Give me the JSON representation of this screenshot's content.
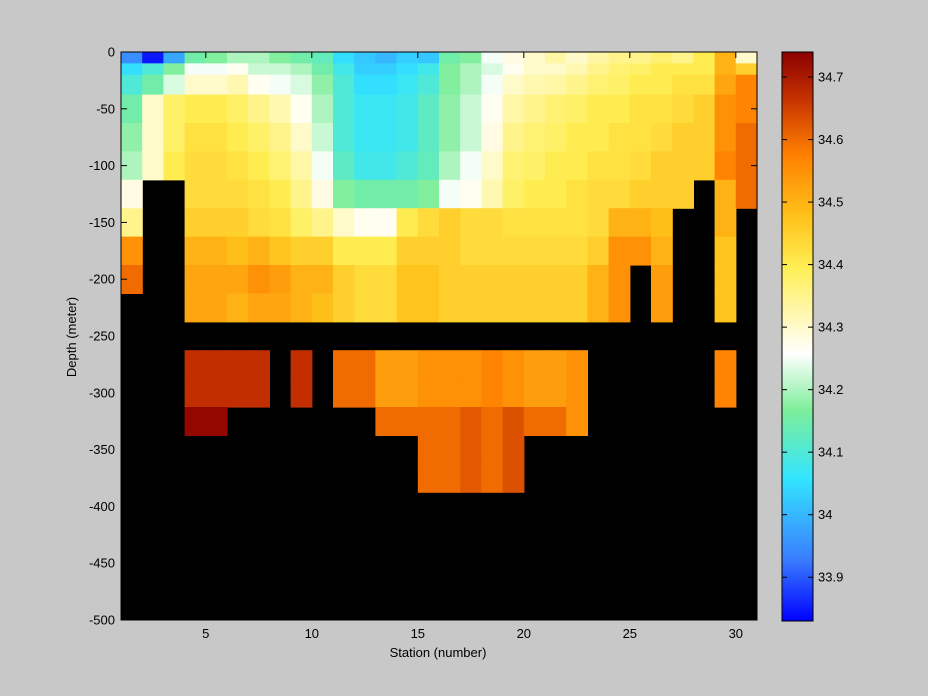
{
  "chart_data": {
    "type": "heatmap",
    "title": "",
    "xlabel": "Station (number)",
    "ylabel": "Depth (meter)",
    "xlim": [
      1,
      31
    ],
    "ylim": [
      -500,
      0
    ],
    "xticks": [
      5,
      10,
      15,
      20,
      25,
      30
    ],
    "yticks": [
      0,
      -50,
      -100,
      -150,
      -200,
      -250,
      -300,
      -350,
      -400,
      -450,
      -500
    ],
    "colorbar": {
      "label": "",
      "range": [
        33.83,
        34.74
      ],
      "ticks": [
        33.9,
        34,
        34.1,
        34.2,
        34.3,
        34.4,
        34.5,
        34.6,
        34.7
      ],
      "colormap": "jet-variant (blue-cyan-green-white-yellow-orange-darkred)"
    },
    "no_data_color": "#000000",
    "station_count": 30,
    "depth_levels": [
      -5,
      -15,
      -25,
      -50,
      -75,
      -100,
      -125,
      -150,
      -175,
      -200,
      -225,
      -250,
      -275,
      -300,
      -325,
      -350,
      -375,
      -400
    ],
    "values": [
      [
        33.95,
        33.85,
        33.98,
        34.15,
        34.17,
        34.2,
        34.2,
        34.17,
        34.15,
        34.13,
        34.05,
        34.02,
        34.0,
        34.03,
        34.02,
        34.15,
        34.17,
        34.25,
        34.28,
        34.3,
        34.33,
        34.3,
        34.33,
        34.35,
        34.35,
        34.37,
        34.35,
        34.4,
        34.5,
        34.3
      ],
      [
        34.05,
        34.1,
        34.17,
        34.25,
        34.25,
        34.27,
        34.22,
        34.22,
        34.2,
        34.15,
        34.08,
        34.03,
        34.03,
        34.05,
        34.08,
        34.17,
        34.2,
        34.23,
        34.27,
        34.3,
        34.3,
        34.32,
        34.35,
        34.37,
        34.38,
        34.4,
        34.4,
        34.4,
        34.5,
        34.45
      ],
      [
        34.1,
        34.15,
        34.23,
        34.3,
        34.3,
        34.32,
        34.27,
        34.25,
        34.23,
        34.18,
        34.1,
        34.05,
        34.05,
        34.07,
        34.1,
        34.17,
        34.2,
        34.25,
        34.3,
        34.32,
        34.33,
        34.35,
        34.37,
        34.38,
        34.4,
        34.4,
        34.42,
        34.42,
        34.52,
        34.57
      ],
      [
        34.15,
        34.3,
        34.38,
        34.4,
        34.4,
        34.38,
        34.35,
        34.32,
        34.27,
        34.2,
        34.1,
        34.07,
        34.07,
        34.08,
        34.12,
        34.18,
        34.22,
        34.27,
        34.33,
        34.35,
        34.37,
        34.38,
        34.4,
        34.4,
        34.42,
        34.42,
        34.43,
        34.45,
        34.55,
        34.57
      ],
      [
        34.18,
        34.3,
        34.38,
        34.42,
        34.42,
        34.4,
        34.38,
        34.35,
        34.3,
        34.22,
        34.1,
        34.07,
        34.07,
        34.08,
        34.12,
        34.18,
        34.22,
        34.28,
        34.35,
        34.37,
        34.38,
        34.4,
        34.4,
        34.42,
        34.42,
        34.43,
        34.45,
        34.45,
        34.55,
        34.6
      ],
      [
        34.2,
        34.3,
        34.4,
        34.43,
        34.43,
        34.42,
        34.4,
        34.37,
        34.33,
        34.25,
        34.12,
        34.08,
        34.08,
        34.1,
        34.13,
        34.2,
        34.25,
        34.3,
        34.37,
        34.38,
        34.4,
        34.4,
        34.42,
        34.42,
        34.43,
        34.45,
        34.45,
        34.45,
        34.57,
        34.6
      ],
      [
        34.28,
        null,
        null,
        34.43,
        34.43,
        34.43,
        34.42,
        34.4,
        34.35,
        34.28,
        34.17,
        34.15,
        34.15,
        34.15,
        34.17,
        34.25,
        34.27,
        34.32,
        34.38,
        34.4,
        34.4,
        34.42,
        34.43,
        34.43,
        34.45,
        34.45,
        34.45,
        null,
        34.5,
        34.6
      ],
      [
        34.35,
        null,
        null,
        34.45,
        34.45,
        34.45,
        34.43,
        34.42,
        34.38,
        34.35,
        34.3,
        34.27,
        34.27,
        34.4,
        34.43,
        34.45,
        34.43,
        34.43,
        34.42,
        34.42,
        34.42,
        34.42,
        34.43,
        34.5,
        34.5,
        34.48,
        null,
        null,
        34.5,
        null
      ],
      [
        34.55,
        null,
        null,
        34.5,
        34.5,
        34.48,
        34.5,
        34.47,
        34.45,
        34.45,
        34.4,
        34.4,
        34.4,
        34.45,
        34.45,
        34.45,
        34.43,
        34.43,
        34.43,
        34.43,
        34.43,
        34.43,
        34.45,
        34.55,
        34.55,
        34.5,
        null,
        null,
        34.47,
        null
      ],
      [
        34.6,
        null,
        null,
        34.52,
        34.52,
        34.52,
        34.55,
        34.53,
        34.5,
        34.5,
        34.45,
        34.43,
        34.43,
        34.47,
        34.47,
        34.45,
        34.45,
        34.45,
        34.45,
        34.45,
        34.45,
        34.45,
        34.5,
        34.55,
        null,
        34.53,
        null,
        null,
        34.47,
        null
      ],
      [
        null,
        null,
        null,
        34.52,
        34.52,
        34.5,
        34.52,
        34.52,
        34.5,
        34.48,
        34.45,
        34.43,
        34.43,
        34.47,
        34.47,
        34.45,
        34.45,
        34.45,
        34.45,
        34.45,
        34.45,
        34.45,
        34.5,
        34.55,
        null,
        34.53,
        null,
        null,
        34.47,
        null
      ],
      [
        null,
        null,
        null,
        null,
        null,
        null,
        null,
        null,
        null,
        null,
        null,
        null,
        null,
        null,
        null,
        null,
        null,
        null,
        null,
        null,
        null,
        null,
        null,
        null,
        null,
        null,
        null,
        null,
        null,
        null
      ],
      [
        null,
        null,
        null,
        34.67,
        34.67,
        34.67,
        34.67,
        null,
        34.67,
        null,
        34.6,
        34.6,
        34.53,
        34.53,
        34.55,
        34.55,
        34.55,
        34.57,
        34.55,
        34.53,
        34.53,
        34.55,
        null,
        null,
        null,
        null,
        null,
        null,
        34.57,
        null
      ],
      [
        null,
        null,
        null,
        34.67,
        34.67,
        34.67,
        34.67,
        null,
        34.67,
        null,
        34.6,
        34.6,
        34.53,
        34.53,
        34.55,
        34.55,
        34.55,
        34.57,
        34.55,
        34.53,
        34.53,
        34.55,
        null,
        null,
        null,
        null,
        null,
        null,
        34.57,
        null
      ],
      [
        null,
        null,
        null,
        34.73,
        34.73,
        null,
        null,
        null,
        null,
        null,
        null,
        null,
        34.6,
        34.6,
        34.6,
        34.6,
        34.62,
        34.6,
        34.63,
        34.6,
        34.6,
        34.55,
        null,
        null,
        null,
        null,
        null,
        null,
        null,
        null
      ],
      [
        null,
        null,
        null,
        null,
        null,
        null,
        null,
        null,
        null,
        null,
        null,
        null,
        null,
        null,
        34.6,
        34.6,
        34.62,
        34.6,
        34.63,
        null,
        null,
        null,
        null,
        null,
        null,
        null,
        null,
        null,
        null,
        null
      ],
      [
        null,
        null,
        null,
        null,
        null,
        null,
        null,
        null,
        null,
        null,
        null,
        null,
        null,
        null,
        34.6,
        34.6,
        34.62,
        34.6,
        34.63,
        null,
        null,
        null,
        null,
        null,
        null,
        null,
        null,
        null,
        null,
        null
      ],
      [
        null,
        null,
        null,
        null,
        null,
        null,
        null,
        null,
        null,
        null,
        null,
        null,
        null,
        null,
        null,
        null,
        null,
        null,
        null,
        null,
        null,
        null,
        null,
        null,
        null,
        null,
        null,
        null,
        null,
        null
      ]
    ]
  }
}
